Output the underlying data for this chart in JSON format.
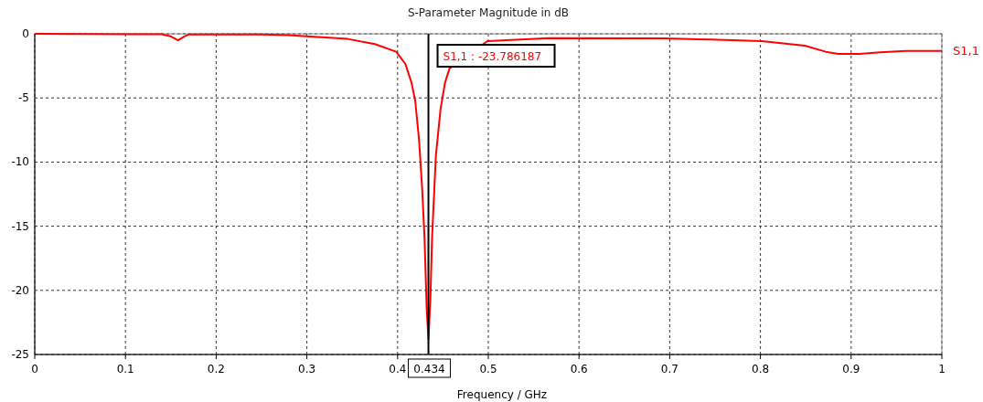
{
  "chart_data": {
    "type": "line",
    "title": "S-Parameter Magnitude in dB",
    "xlabel": "Frequency / GHz",
    "xlim": [
      0,
      1
    ],
    "xticks": [
      0,
      0.1,
      0.2,
      0.3,
      0.4,
      0.5,
      0.6,
      0.7,
      0.8,
      0.9,
      1
    ],
    "ylim": [
      -25,
      0
    ],
    "yticks": [
      -25,
      -20,
      -15,
      -10,
      -5,
      0
    ],
    "grid": true,
    "series": [
      {
        "name": "S1,1",
        "color": "#ff0000",
        "x": [
          0,
          0.05,
          0.1,
          0.14,
          0.15,
          0.158,
          0.165,
          0.17,
          0.25,
          0.28,
          0.3,
          0.345,
          0.375,
          0.3985,
          0.4086,
          0.4153,
          0.4194,
          0.4237,
          0.4271,
          0.4297,
          0.432,
          0.434,
          0.4362,
          0.438,
          0.4422,
          0.4473,
          0.4523,
          0.4573,
          0.499,
          0.567,
          0.694,
          0.745,
          0.8015,
          0.849,
          0.872,
          0.886,
          0.909,
          0.932,
          0.96,
          1
        ],
        "values": [
          0,
          -0.02,
          -0.03,
          -0.03,
          -0.2,
          -0.5,
          -0.2,
          -0.05,
          -0.05,
          -0.1,
          -0.2,
          -0.4,
          -0.8,
          -1.4,
          -2.35,
          -3.8,
          -5.2,
          -8.3,
          -12.1,
          -15.9,
          -21.3,
          -23.8,
          -20.6,
          -15.9,
          -9.5,
          -5.9,
          -3.8,
          -2.7,
          -0.57,
          -0.33,
          -0.36,
          -0.45,
          -0.57,
          -0.93,
          -1.4,
          -1.57,
          -1.57,
          -1.45,
          -1.33,
          -1.33
        ]
      }
    ],
    "ref_lines": [
      {
        "axis": "x",
        "value": 0.434,
        "label": "0.434",
        "color": "#000000"
      }
    ],
    "annotations": [
      "S1,1 : -23.786187"
    ]
  }
}
